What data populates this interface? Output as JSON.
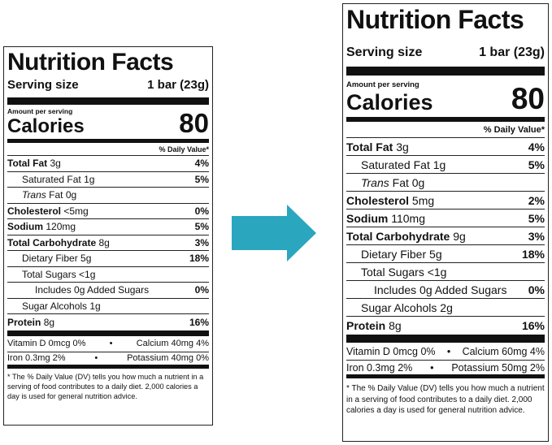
{
  "left": {
    "title": "Nutrition Facts",
    "serving_label": "Serving size",
    "serving_value": "1 bar (23g)",
    "amount_per_serving": "Amount per serving",
    "calories_label": "Calories",
    "calories_value": "80",
    "daily_value_header": "% Daily Value*",
    "rows": [
      {
        "name": "Total Fat",
        "amount": "3g",
        "dv": "4%"
      },
      {
        "name": "Saturated Fat",
        "amount": "1g",
        "dv": "5%"
      },
      {
        "name": "Trans",
        "name2": "Fat 0g",
        "dv": ""
      },
      {
        "name": "Cholesterol",
        "amount": "<5mg",
        "dv": "0%"
      },
      {
        "name": "Sodium",
        "amount": "120mg",
        "dv": "5%"
      },
      {
        "name": "Total Carbohydrate",
        "amount": "8g",
        "dv": "3%"
      },
      {
        "name": "Dietary Fiber",
        "amount": "5g",
        "dv": "18%"
      },
      {
        "name": "Total Sugars <1g",
        "amount": "",
        "dv": ""
      },
      {
        "name": "Includes 0g Added Sugars",
        "amount": "",
        "dv": "0%"
      },
      {
        "name": "Sugar Alcohols 1g",
        "amount": "",
        "dv": ""
      },
      {
        "name": "Protein",
        "amount": "8g",
        "dv": "16%"
      }
    ],
    "vitamins": [
      {
        "a": "Vitamin D 0mcg 0%",
        "b": "Calcium 40mg 4%"
      },
      {
        "a": "Iron 0.3mg 2%",
        "b": "Potassium 40mg 0%"
      }
    ],
    "footnote": "* The % Daily Value (DV) tells you how much a nutrient in a serving of food contributes to a daily diet. 2,000 calories a day is used for general nutrition advice."
  },
  "right": {
    "title": "Nutrition Facts",
    "serving_label": "Serving size",
    "serving_value": "1 bar (23g)",
    "amount_per_serving": "Amount per serving",
    "calories_label": "Calories",
    "calories_value": "80",
    "daily_value_header": "% Daily Value*",
    "rows": [
      {
        "name": "Total Fat",
        "amount": "3g",
        "dv": "4%"
      },
      {
        "name": "Saturated Fat",
        "amount": "1g",
        "dv": "5%"
      },
      {
        "name": "Trans",
        "name2": "Fat 0g",
        "dv": ""
      },
      {
        "name": "Cholesterol",
        "amount": "5mg",
        "dv": "2%"
      },
      {
        "name": "Sodium",
        "amount": "110mg",
        "dv": "5%"
      },
      {
        "name": "Total Carbohydrate",
        "amount": "9g",
        "dv": "3%"
      },
      {
        "name": "Dietary Fiber",
        "amount": "5g",
        "dv": "18%"
      },
      {
        "name": "Total Sugars <1g",
        "amount": "",
        "dv": ""
      },
      {
        "name": "Includes 0g Added Sugars",
        "amount": "",
        "dv": "0%"
      },
      {
        "name": "Sugar Alcohols 2g",
        "amount": "",
        "dv": ""
      },
      {
        "name": "Protein",
        "amount": "8g",
        "dv": "16%"
      }
    ],
    "vitamins": [
      {
        "a": "Vitamin D 0mcg 0%",
        "b": "Calcium 60mg 4%"
      },
      {
        "a": "Iron 0.3mg 2%",
        "b": "Potassium 50mg 2%"
      }
    ],
    "footnote": "* The % Daily Value (DV) tells you how much a nutrient in a serving of food contributes to a daily diet. 2,000 calories a day is used for general nutrition advice."
  },
  "arrow_color": "#2aa6bf",
  "bullet": "•"
}
